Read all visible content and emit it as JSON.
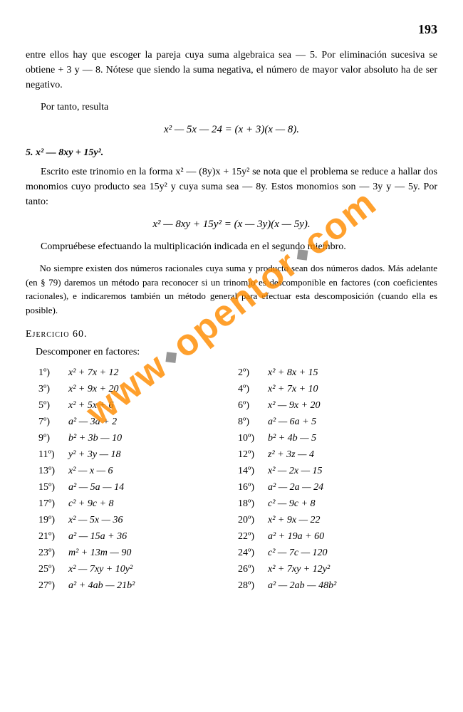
{
  "page_number": "193",
  "p1": "entre ellos hay que escoger la pareja cuya suma algebraica sea — 5. Por eliminación sucesiva se obtiene + 3 y — 8. Nótese que siendo la suma negativa, el número de mayor valor absoluto ha de ser negativo.",
  "p2": "Por tanto, resulta",
  "eq1": "x² — 5x — 24 = (x + 3)(x — 8).",
  "sec5": "5.    x² — 8xy + 15y².",
  "p3": "Escrito este trinomio en la forma x² — (8y)x + 15y² se nota que el problema se reduce a hallar dos monomios cuyo producto sea 15y² y cuya suma sea — 8y. Estos monomios son — 3y y — 5y. Por tanto:",
  "eq2": "x² — 8xy + 15y² = (x — 3y)(x — 5y).",
  "p4": "Compruébese efectuando la multiplicación indicada en el segundo miembro.",
  "note": "No siempre existen dos números racionales cuya suma y producto sean dos números dados. Más adelante (en § 79) daremos un método para reconocer si un trinomio es descomponible en factores (con coeficientes racionales), e indicaremos también un método general para efectuar esta descomposición (cuando ella es posible).",
  "exercise_title": "Ejercicio 60.",
  "exercise_sub": "Descomponer en factores:",
  "exercises": [
    {
      "ln": "1º)",
      "le": "x² + 7x + 12",
      "rn": "2º)",
      "re": "x² + 8x + 15"
    },
    {
      "ln": "3º)",
      "le": "x² + 9x + 20",
      "rn": "4º)",
      "re": "x² + 7x + 10"
    },
    {
      "ln": "5º)",
      "le": "x² + 5x + 6",
      "rn": "6º)",
      "re": "x² — 9x + 20"
    },
    {
      "ln": "7º)",
      "le": "a² — 3a + 2",
      "rn": "8º)",
      "re": "a² — 6a + 5"
    },
    {
      "ln": "9º)",
      "le": "b² + 3b — 10",
      "rn": "10º)",
      "re": "b² + 4b — 5"
    },
    {
      "ln": "11º)",
      "le": "y² + 3y — 18",
      "rn": "12º)",
      "re": "z² + 3z — 4"
    },
    {
      "ln": "13º)",
      "le": "x² — x — 6",
      "rn": "14º)",
      "re": "x² — 2x — 15"
    },
    {
      "ln": "15º)",
      "le": "a² — 5a — 14",
      "rn": "16º)",
      "re": "a² — 2a — 24"
    },
    {
      "ln": "17º)",
      "le": "c² + 9c + 8",
      "rn": "18º)",
      "re": "c² — 9c + 8"
    },
    {
      "ln": "19º)",
      "le": "x² — 5x — 36",
      "rn": "20º)",
      "re": "x² + 9x — 22"
    },
    {
      "ln": "21º)",
      "le": "a² — 15a + 36",
      "rn": "22º)",
      "re": "a² + 19a + 60"
    },
    {
      "ln": "23º)",
      "le": "m² + 13m — 90",
      "rn": "24º)",
      "re": "c² — 7c — 120"
    },
    {
      "ln": "25º)",
      "le": "x² — 7xy + 10y²",
      "rn": "26º)",
      "re": "x² + 7xy + 12y²"
    },
    {
      "ln": "27º)",
      "le": "a² + 4ab — 21b²",
      "rn": "28º)",
      "re": "a² — 2ab — 48b²"
    }
  ],
  "watermark": {
    "pre": "www",
    "mid": "opentor",
    "post": "com"
  }
}
